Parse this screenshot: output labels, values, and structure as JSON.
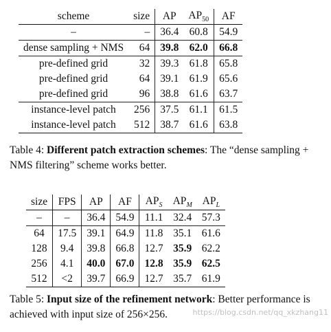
{
  "table4": {
    "headers": {
      "scheme": "scheme",
      "size": "size",
      "ap": "AP",
      "ap50_base": "AP",
      "ap50_sub": "50",
      "af": "AF"
    },
    "rows": [
      {
        "scheme": "–",
        "size": "–",
        "ap": "36.4",
        "ap50": "60.8",
        "af": "54.9"
      },
      {
        "scheme": "dense sampling + NMS",
        "size": "64",
        "ap": "39.8",
        "ap50": "62.0",
        "af": "66.8"
      },
      {
        "scheme": "pre-defined grid",
        "size": "32",
        "ap": "39.3",
        "ap50": "61.8",
        "af": "65.8"
      },
      {
        "scheme": "pre-defined grid",
        "size": "64",
        "ap": "39.1",
        "ap50": "61.9",
        "af": "65.6"
      },
      {
        "scheme": "pre-defined grid",
        "size": "96",
        "ap": "38.8",
        "ap50": "61.6",
        "af": "63.7"
      },
      {
        "scheme": "instance-level patch",
        "size": "256",
        "ap": "37.5",
        "ap50": "61.1",
        "af": "61.5"
      },
      {
        "scheme": "instance-level patch",
        "size": "512",
        "ap": "38.7",
        "ap50": "61.6",
        "af": "63.8"
      }
    ],
    "caption": {
      "label": "Table 4: ",
      "bold": "Different patch extraction schemes",
      "rest": ": The “dense sampling + NMS filtering” scheme works better."
    }
  },
  "table5": {
    "headers": {
      "size": "size",
      "fps": "FPS",
      "ap": "AP",
      "af": "AF",
      "aps_base": "AP",
      "aps_sub": "S",
      "apm_base": "AP",
      "apm_sub": "M",
      "apl_base": "AP",
      "apl_sub": "L"
    },
    "rows": [
      {
        "size": "–",
        "fps": "–",
        "ap": "36.4",
        "af": "54.9",
        "aps": "11.1",
        "apm": "32.4",
        "apl": "57.3"
      },
      {
        "size": "64",
        "fps": "17.5",
        "ap": "39.1",
        "af": "64.9",
        "aps": "11.8",
        "apm": "35.1",
        "apl": "61.6"
      },
      {
        "size": "128",
        "fps": "9.4",
        "ap": "39.8",
        "af": "66.8",
        "aps": "12.7",
        "apm": "35.9",
        "apl": "62.2"
      },
      {
        "size": "256",
        "fps": "4.1",
        "ap": "40.0",
        "af": "67.0",
        "aps": "12.8",
        "apm": "35.9",
        "apl": "62.5"
      },
      {
        "size": "512",
        "fps": "<2",
        "ap": "39.7",
        "af": "66.9",
        "aps": "12.7",
        "apm": "35.7",
        "apl": "61.9"
      }
    ],
    "caption": {
      "label": "Table 5: ",
      "bold": "Input size of the refinement network",
      "rest": ": Better performance is achieved with input size of 256×256."
    }
  },
  "watermark": "https://blog.csdn.net/qq_xkzhang11"
}
